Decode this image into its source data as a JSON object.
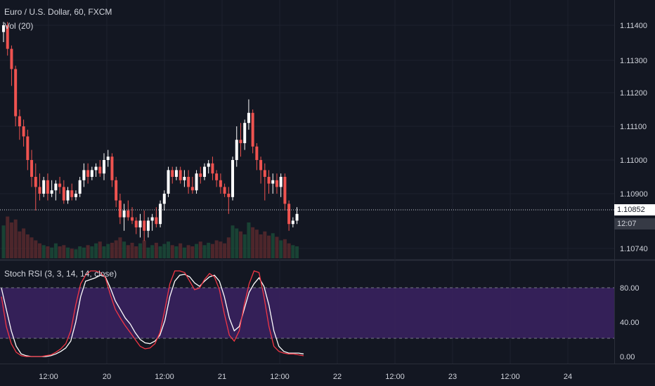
{
  "header": {
    "title": "Euro / U.S. Dollar, 60, FXCM",
    "volume_indicator": "Vol (20)",
    "stoch_indicator": "Stoch RSI (3, 3, 14, 14, close)"
  },
  "price_axis": {
    "ticks": [
      "1.11400",
      "1.11300",
      "1.11200",
      "1.11100",
      "1.11000",
      "1.10900",
      "1.10740"
    ],
    "last_price": "1.10852",
    "countdown": "12:07"
  },
  "stoch_axis": {
    "ticks": [
      "80.00",
      "40.00",
      "0.00"
    ]
  },
  "time_axis": {
    "ticks": [
      "12:00",
      "20",
      "12:00",
      "21",
      "12:00",
      "22",
      "12:00",
      "23",
      "12:00",
      "24"
    ]
  },
  "colors": {
    "background": "#131722",
    "up": "#ffffff",
    "down": "#ef5350",
    "stoch_k": "#ffffff",
    "stoch_d": "#f23645",
    "band": "#3b2262"
  },
  "chart_data": [
    {
      "type": "candlestick",
      "series": [
        {
          "name": "",
          "ohlc": [
            [
              1.1138,
              1.1141,
              1.1135,
              1.114
            ],
            [
              1.114,
              1.1141,
              1.1131,
              1.1133
            ],
            [
              1.1133,
              1.1134,
              1.1122,
              1.1127
            ],
            [
              1.1127,
              1.1128,
              1.111,
              1.1113
            ],
            [
              1.1113,
              1.1115,
              1.1106,
              1.111
            ],
            [
              1.111,
              1.1112,
              1.1104,
              1.1107
            ],
            [
              1.1107,
              1.1109,
              1.1097,
              1.11
            ],
            [
              1.11,
              1.1103,
              1.1092,
              1.1095
            ],
            [
              1.1095,
              1.1099,
              1.1085,
              1.1092
            ],
            [
              1.1092,
              1.1096,
              1.1088,
              1.109
            ],
            [
              1.109,
              1.1095,
              1.1089,
              1.1094
            ],
            [
              1.1094,
              1.1096,
              1.1088,
              1.109
            ],
            [
              1.109,
              1.1094,
              1.1089,
              1.1091
            ],
            [
              1.1091,
              1.1094,
              1.1088,
              1.1093
            ],
            [
              1.1093,
              1.1095,
              1.109,
              1.1092
            ],
            [
              1.1092,
              1.1094,
              1.1087,
              1.1088
            ],
            [
              1.1088,
              1.1092,
              1.1087,
              1.1091
            ],
            [
              1.1091,
              1.1093,
              1.1088,
              1.1089
            ],
            [
              1.1089,
              1.1091,
              1.1088,
              1.109
            ],
            [
              1.109,
              1.1095,
              1.1089,
              1.1094
            ],
            [
              1.1094,
              1.1099,
              1.1092,
              1.1097
            ],
            [
              1.1097,
              1.1099,
              1.1093,
              1.1095
            ],
            [
              1.1095,
              1.1098,
              1.1094,
              1.1097
            ],
            [
              1.1097,
              1.1099,
              1.1095,
              1.1098
            ],
            [
              1.1098,
              1.11,
              1.1095,
              1.1096
            ],
            [
              1.1096,
              1.1102,
              1.1094,
              1.11
            ],
            [
              1.11,
              1.1103,
              1.1098,
              1.1101
            ],
            [
              1.1101,
              1.1102,
              1.1092,
              1.1094
            ],
            [
              1.1094,
              1.1095,
              1.1086,
              1.1088
            ],
            [
              1.1088,
              1.109,
              1.1081,
              1.1083
            ],
            [
              1.1083,
              1.1087,
              1.1079,
              1.1085
            ],
            [
              1.1085,
              1.1088,
              1.1082,
              1.1083
            ],
            [
              1.1083,
              1.1086,
              1.1081,
              1.1082
            ],
            [
              1.1082,
              1.1083,
              1.1078,
              1.108
            ],
            [
              1.108,
              1.1084,
              1.1077,
              1.1082
            ],
            [
              1.1082,
              1.1085,
              1.1076,
              1.1079
            ],
            [
              1.1079,
              1.1083,
              1.1077,
              1.1082
            ],
            [
              1.1082,
              1.1084,
              1.1079,
              1.1083
            ],
            [
              1.1083,
              1.1086,
              1.108,
              1.1081
            ],
            [
              1.1081,
              1.1088,
              1.108,
              1.1087
            ],
            [
              1.1087,
              1.1091,
              1.1085,
              1.109
            ],
            [
              1.109,
              1.1098,
              1.1089,
              1.1097
            ],
            [
              1.1097,
              1.1098,
              1.1093,
              1.1095
            ],
            [
              1.1095,
              1.1098,
              1.1094,
              1.1097
            ],
            [
              1.1097,
              1.1098,
              1.1093,
              1.1094
            ],
            [
              1.1094,
              1.1097,
              1.1092,
              1.1095
            ],
            [
              1.1095,
              1.1097,
              1.109,
              1.1092
            ],
            [
              1.1092,
              1.1095,
              1.109,
              1.1091
            ],
            [
              1.1091,
              1.1097,
              1.109,
              1.1096
            ],
            [
              1.1096,
              1.1098,
              1.1093,
              1.1095
            ],
            [
              1.1095,
              1.1099,
              1.1094,
              1.1098
            ],
            [
              1.1098,
              1.11,
              1.1096,
              1.1099
            ],
            [
              1.1099,
              1.1101,
              1.1094,
              1.1096
            ],
            [
              1.1096,
              1.1097,
              1.1092,
              1.1094
            ],
            [
              1.1094,
              1.1096,
              1.109,
              1.1092
            ],
            [
              1.1092,
              1.1093,
              1.1089,
              1.109
            ],
            [
              1.109,
              1.1092,
              1.1084,
              1.1089
            ],
            [
              1.1089,
              1.1101,
              1.1088,
              1.11
            ],
            [
              1.11,
              1.111,
              1.1098,
              1.1106
            ],
            [
              1.1106,
              1.1111,
              1.1101,
              1.1105
            ],
            [
              1.1105,
              1.1112,
              1.1103,
              1.1111
            ],
            [
              1.1111,
              1.1118,
              1.1109,
              1.1114
            ],
            [
              1.1114,
              1.1115,
              1.1102,
              1.1104
            ],
            [
              1.1104,
              1.1105,
              1.1097,
              1.11
            ],
            [
              1.11,
              1.1101,
              1.1093,
              1.1097
            ],
            [
              1.1097,
              1.1099,
              1.1088,
              1.1095
            ],
            [
              1.1095,
              1.1097,
              1.109,
              1.1093
            ],
            [
              1.1093,
              1.1096,
              1.109,
              1.1094
            ],
            [
              1.1094,
              1.1096,
              1.109,
              1.1092
            ],
            [
              1.1092,
              1.1096,
              1.1089,
              1.1095
            ],
            [
              1.1095,
              1.1096,
              1.1085,
              1.1087
            ],
            [
              1.1087,
              1.1088,
              1.1079,
              1.1081
            ],
            [
              1.1081,
              1.1083,
              1.108,
              1.1082
            ],
            [
              1.1082,
              1.1086,
              1.1081,
              1.1084
            ]
          ]
        }
      ],
      "y_range": [
        1.1074,
        1.1146
      ],
      "last_price": 1.10852
    },
    {
      "type": "bar",
      "series": [
        {
          "name": "Vol (20)",
          "values": [
            55,
            70,
            60,
            65,
            45,
            50,
            40,
            35,
            30,
            25,
            22,
            20,
            18,
            25,
            20,
            22,
            18,
            16,
            15,
            20,
            18,
            22,
            20,
            25,
            28,
            20,
            24,
            26,
            30,
            35,
            28,
            22,
            26,
            20,
            25,
            30,
            18,
            22,
            26,
            20,
            24,
            28,
            22,
            20,
            25,
            18,
            22,
            20,
            24,
            28,
            22,
            26,
            24,
            30,
            28,
            25,
            35,
            55,
            50,
            45,
            40,
            60,
            52,
            48,
            40,
            45,
            38,
            42,
            36,
            30,
            32,
            25,
            22,
            20
          ]
        }
      ]
    },
    {
      "type": "line",
      "series": [
        {
          "name": "",
          "color": "#ffffff",
          "values": [
            80,
            55,
            30,
            12,
            3,
            1,
            0,
            0,
            0,
            0,
            1,
            3,
            6,
            10,
            18,
            40,
            70,
            88,
            90,
            92,
            95,
            93,
            80,
            65,
            55,
            45,
            38,
            28,
            20,
            16,
            15,
            18,
            25,
            42,
            70,
            88,
            95,
            96,
            93,
            86,
            82,
            88,
            93,
            95,
            88,
            70,
            45,
            30,
            35,
            55,
            75,
            85,
            92,
            82,
            60,
            30,
            12,
            6,
            4,
            4,
            4,
            3
          ]
        },
        {
          "name": "",
          "color": "#f23645",
          "values": [
            70,
            35,
            15,
            5,
            1,
            0,
            0,
            0,
            0,
            1,
            2,
            5,
            9,
            15,
            30,
            60,
            85,
            95,
            100,
            100,
            98,
            92,
            72,
            55,
            45,
            36,
            28,
            20,
            12,
            9,
            10,
            15,
            28,
            55,
            85,
            100,
            100,
            98,
            88,
            78,
            80,
            90,
            97,
            93,
            78,
            50,
            25,
            18,
            30,
            60,
            85,
            100,
            98,
            70,
            35,
            12,
            6,
            4,
            3,
            3,
            2,
            1
          ]
        }
      ],
      "y_range": [
        0,
        100
      ],
      "bands": [
        20,
        80
      ]
    }
  ]
}
